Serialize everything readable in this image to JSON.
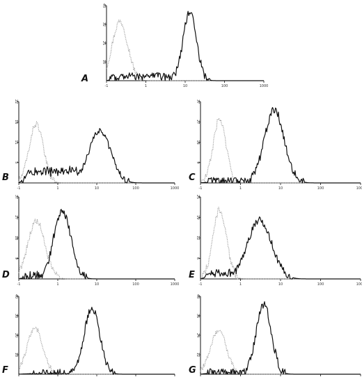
{
  "chart_data": [
    {
      "type": "line",
      "panel": "A",
      "x_scale": "log",
      "xlim": [
        0.1,
        1000
      ],
      "x_ticks": [
        "-1",
        "1",
        "10",
        "100",
        "1000"
      ],
      "y_ticks": [
        "0",
        "10",
        "21",
        "32",
        "43"
      ],
      "ylim": [
        0,
        43
      ],
      "series": [
        {
          "style": "dotted",
          "color": "#9a9a9a",
          "mode": 0.22,
          "sigma": 0.2,
          "peak": 34
        },
        {
          "style": "solid",
          "color": "#111111",
          "mode": 13,
          "sigma": 0.17,
          "peak": 39,
          "tail_level": 3
        }
      ]
    },
    {
      "type": "line",
      "panel": "B",
      "x_scale": "log",
      "xlim": [
        0.1,
        1000
      ],
      "x_ticks": [
        "-1",
        "1",
        "10",
        "100",
        "1000"
      ],
      "y_ticks": [
        "0",
        "5",
        "11",
        "16",
        "22"
      ],
      "ylim": [
        0,
        22
      ],
      "series": [
        {
          "style": "dotted",
          "color": "#9a9a9a",
          "mode": 0.28,
          "sigma": 0.18,
          "peak": 16
        },
        {
          "style": "solid",
          "color": "#111111",
          "mode": 12,
          "sigma": 0.28,
          "peak": 14,
          "tail_level": 4
        }
      ]
    },
    {
      "type": "line",
      "panel": "C",
      "x_scale": "log",
      "xlim": [
        0.1,
        1000
      ],
      "x_ticks": [
        "-1",
        "1",
        "10",
        "100",
        "1000"
      ],
      "y_ticks": [
        "0",
        "9",
        "18",
        "27",
        "37"
      ],
      "ylim": [
        0,
        37
      ],
      "series": [
        {
          "style": "dotted",
          "color": "#9a9a9a",
          "mode": 0.3,
          "sigma": 0.16,
          "peak": 29
        },
        {
          "style": "solid",
          "color": "#111111",
          "mode": 7,
          "sigma": 0.25,
          "peak": 33,
          "tail_level": 1
        }
      ]
    },
    {
      "type": "line",
      "panel": "D",
      "x_scale": "log",
      "xlim": [
        0.1,
        1000
      ],
      "x_ticks": [
        "-1",
        "1",
        "10",
        "100",
        "1000"
      ],
      "y_ticks": [
        "0",
        "9",
        "18",
        "27",
        "37"
      ],
      "ylim": [
        0,
        37
      ],
      "series": [
        {
          "style": "dotted",
          "color": "#9a9a9a",
          "mode": 0.28,
          "sigma": 0.22,
          "peak": 26
        },
        {
          "style": "solid",
          "color": "#111111",
          "mode": 1.3,
          "sigma": 0.22,
          "peak": 31,
          "tail_level": 2
        }
      ]
    },
    {
      "type": "line",
      "panel": "E",
      "x_scale": "log",
      "xlim": [
        0.1,
        1000
      ],
      "x_ticks": [
        "-1",
        "1",
        "10",
        "100",
        "1000"
      ],
      "y_ticks": [
        "0",
        "6",
        "12",
        "19",
        "25"
      ],
      "ylim": [
        0,
        25
      ],
      "series": [
        {
          "style": "dotted",
          "color": "#9a9a9a",
          "mode": 0.3,
          "sigma": 0.17,
          "peak": 21
        },
        {
          "style": "solid",
          "color": "#111111",
          "mode": 3,
          "sigma": 0.3,
          "peak": 18,
          "tail_level": 2
        }
      ]
    },
    {
      "type": "line",
      "panel": "F",
      "x_scale": "log",
      "xlim": [
        0.1,
        1000
      ],
      "x_ticks": [
        "-1",
        "1",
        "10",
        "100",
        "1000"
      ],
      "y_ticks": [
        "0",
        "10",
        "20",
        "30",
        "40"
      ],
      "ylim": [
        0,
        40
      ],
      "series": [
        {
          "style": "dotted",
          "color": "#9a9a9a",
          "mode": 0.26,
          "sigma": 0.2,
          "peak": 24
        },
        {
          "style": "solid",
          "color": "#111111",
          "mode": 7.5,
          "sigma": 0.2,
          "peak": 34,
          "tail_level": 0.5
        }
      ]
    },
    {
      "type": "line",
      "panel": "G",
      "x_scale": "log",
      "xlim": [
        0.1,
        1000
      ],
      "x_ticks": [
        "-1",
        "1",
        "10",
        "100",
        "1000"
      ],
      "y_ticks": [
        "0",
        "12",
        "24",
        "36",
        "48"
      ],
      "ylim": [
        0,
        48
      ],
      "series": [
        {
          "style": "dotted",
          "color": "#9a9a9a",
          "mode": 0.28,
          "sigma": 0.2,
          "peak": 27
        },
        {
          "style": "solid",
          "color": "#111111",
          "mode": 3.8,
          "sigma": 0.19,
          "peak": 43,
          "tail_level": 1.5
        }
      ]
    }
  ]
}
